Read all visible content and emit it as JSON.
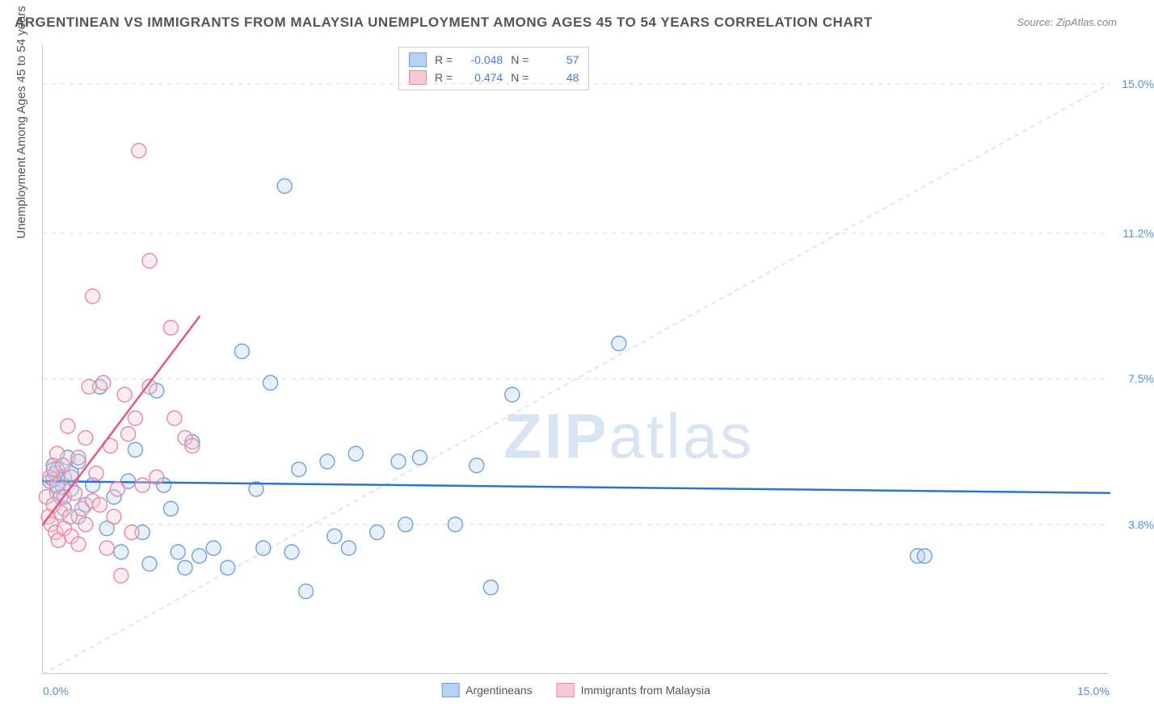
{
  "title": "ARGENTINEAN VS IMMIGRANTS FROM MALAYSIA UNEMPLOYMENT AMONG AGES 45 TO 54 YEARS CORRELATION CHART",
  "source": "Source: ZipAtlas.com",
  "y_axis_label": "Unemployment Among Ages 45 to 54 years",
  "watermark": "ZIPatlas",
  "chart": {
    "type": "scatter",
    "background_color": "#ffffff",
    "grid_color": "#d8d8d8",
    "axis_color": "#c8c8c8",
    "xlim": [
      0,
      15
    ],
    "ylim": [
      0,
      16
    ],
    "x_ticks": [
      {
        "value": 0.0,
        "label": "0.0%"
      },
      {
        "value": 15.0,
        "label": "15.0%"
      }
    ],
    "y_ticks": [
      {
        "value": 3.8,
        "label": "3.8%"
      },
      {
        "value": 7.5,
        "label": "7.5%"
      },
      {
        "value": 11.2,
        "label": "11.2%"
      },
      {
        "value": 15.0,
        "label": "15.0%"
      }
    ],
    "diagonal": {
      "color": "#dddddd",
      "dash": "6,5",
      "from": [
        0,
        0
      ],
      "to": [
        15,
        15
      ]
    },
    "marker_radius": 9,
    "marker_stroke_width": 1.4,
    "marker_fill_opacity": 0.35,
    "series": [
      {
        "name": "Argentineans",
        "color_fill": "#b9d1f0",
        "color_stroke": "#6fa3e0",
        "points": [
          [
            0.1,
            4.9
          ],
          [
            0.15,
            5.3
          ],
          [
            0.2,
            4.6
          ],
          [
            0.2,
            5.2
          ],
          [
            0.25,
            4.5
          ],
          [
            0.3,
            5.0
          ],
          [
            0.3,
            4.2
          ],
          [
            0.35,
            5.5
          ],
          [
            0.4,
            4.7
          ],
          [
            0.4,
            5.1
          ],
          [
            0.5,
            4.0
          ],
          [
            0.5,
            5.4
          ],
          [
            0.6,
            4.3
          ],
          [
            0.7,
            4.8
          ],
          [
            0.8,
            7.3
          ],
          [
            0.9,
            3.7
          ],
          [
            1.0,
            4.5
          ],
          [
            1.1,
            3.1
          ],
          [
            1.2,
            4.9
          ],
          [
            1.3,
            5.7
          ],
          [
            1.4,
            3.6
          ],
          [
            1.5,
            2.8
          ],
          [
            1.6,
            7.2
          ],
          [
            1.7,
            4.8
          ],
          [
            1.8,
            4.2
          ],
          [
            1.9,
            3.1
          ],
          [
            2.0,
            2.7
          ],
          [
            2.1,
            5.9
          ],
          [
            2.2,
            3.0
          ],
          [
            2.4,
            3.2
          ],
          [
            2.6,
            2.7
          ],
          [
            2.8,
            8.2
          ],
          [
            3.0,
            4.7
          ],
          [
            3.1,
            3.2
          ],
          [
            3.2,
            7.4
          ],
          [
            3.4,
            12.4
          ],
          [
            3.5,
            3.1
          ],
          [
            3.6,
            5.2
          ],
          [
            3.7,
            2.1
          ],
          [
            4.0,
            5.4
          ],
          [
            4.1,
            3.5
          ],
          [
            4.3,
            3.2
          ],
          [
            4.4,
            5.6
          ],
          [
            4.7,
            3.6
          ],
          [
            5.0,
            5.4
          ],
          [
            5.1,
            3.8
          ],
          [
            5.3,
            5.5
          ],
          [
            5.8,
            3.8
          ],
          [
            6.1,
            5.3
          ],
          [
            6.3,
            2.2
          ],
          [
            6.6,
            7.1
          ],
          [
            8.1,
            8.4
          ],
          [
            12.3,
            3.0
          ],
          [
            12.4,
            3.0
          ],
          [
            0.15,
            4.95
          ],
          [
            0.18,
            5.1
          ],
          [
            0.28,
            4.75
          ]
        ],
        "trend": {
          "slope": -0.02,
          "intercept": 4.9,
          "color": "#2b74d1",
          "width": 2.5
        }
      },
      {
        "name": "Immigrants from Malaysia",
        "color_fill": "#f7c9d4",
        "color_stroke": "#e98ba3",
        "points": [
          [
            0.05,
            4.5
          ],
          [
            0.08,
            4.0
          ],
          [
            0.1,
            5.0
          ],
          [
            0.12,
            3.8
          ],
          [
            0.15,
            4.3
          ],
          [
            0.15,
            5.2
          ],
          [
            0.18,
            3.6
          ],
          [
            0.2,
            4.8
          ],
          [
            0.2,
            5.6
          ],
          [
            0.22,
            3.4
          ],
          [
            0.25,
            4.1
          ],
          [
            0.28,
            5.3
          ],
          [
            0.3,
            4.5
          ],
          [
            0.3,
            3.7
          ],
          [
            0.35,
            6.3
          ],
          [
            0.38,
            4.0
          ],
          [
            0.4,
            5.0
          ],
          [
            0.4,
            3.5
          ],
          [
            0.45,
            4.6
          ],
          [
            0.5,
            5.5
          ],
          [
            0.5,
            3.3
          ],
          [
            0.55,
            4.2
          ],
          [
            0.6,
            6.0
          ],
          [
            0.6,
            3.8
          ],
          [
            0.65,
            7.3
          ],
          [
            0.7,
            4.4
          ],
          [
            0.7,
            9.6
          ],
          [
            0.75,
            5.1
          ],
          [
            0.8,
            4.3
          ],
          [
            0.85,
            7.4
          ],
          [
            0.9,
            3.2
          ],
          [
            0.95,
            5.8
          ],
          [
            1.0,
            4.0
          ],
          [
            1.05,
            4.7
          ],
          [
            1.1,
            2.5
          ],
          [
            1.15,
            7.1
          ],
          [
            1.2,
            6.1
          ],
          [
            1.25,
            3.6
          ],
          [
            1.3,
            6.5
          ],
          [
            1.35,
            13.3
          ],
          [
            1.4,
            4.8
          ],
          [
            1.5,
            7.3
          ],
          [
            1.5,
            10.5
          ],
          [
            1.6,
            5.0
          ],
          [
            1.8,
            8.8
          ],
          [
            1.85,
            6.5
          ],
          [
            2.0,
            6.0
          ],
          [
            2.1,
            5.8
          ]
        ],
        "trend": {
          "slope": 2.4,
          "intercept": 3.8,
          "xmax": 2.2,
          "color": "#e05b7e",
          "width": 2.5
        }
      }
    ]
  },
  "stats": [
    {
      "swatch_fill": "#b9d1f0",
      "swatch_stroke": "#6fa3e0",
      "r_label": "R =",
      "r": "-0.048",
      "n_label": "N =",
      "n": "57"
    },
    {
      "swatch_fill": "#f7c9d4",
      "swatch_stroke": "#e98ba3",
      "r_label": "R =",
      "r": "0.474",
      "n_label": "N =",
      "n": "48"
    }
  ],
  "bottom_legend": [
    {
      "swatch_fill": "#b9d1f0",
      "swatch_stroke": "#6fa3e0",
      "label": "Argentineans"
    },
    {
      "swatch_fill": "#f7c9d4",
      "swatch_stroke": "#e98ba3",
      "label": "Immigrants from Malaysia"
    }
  ]
}
